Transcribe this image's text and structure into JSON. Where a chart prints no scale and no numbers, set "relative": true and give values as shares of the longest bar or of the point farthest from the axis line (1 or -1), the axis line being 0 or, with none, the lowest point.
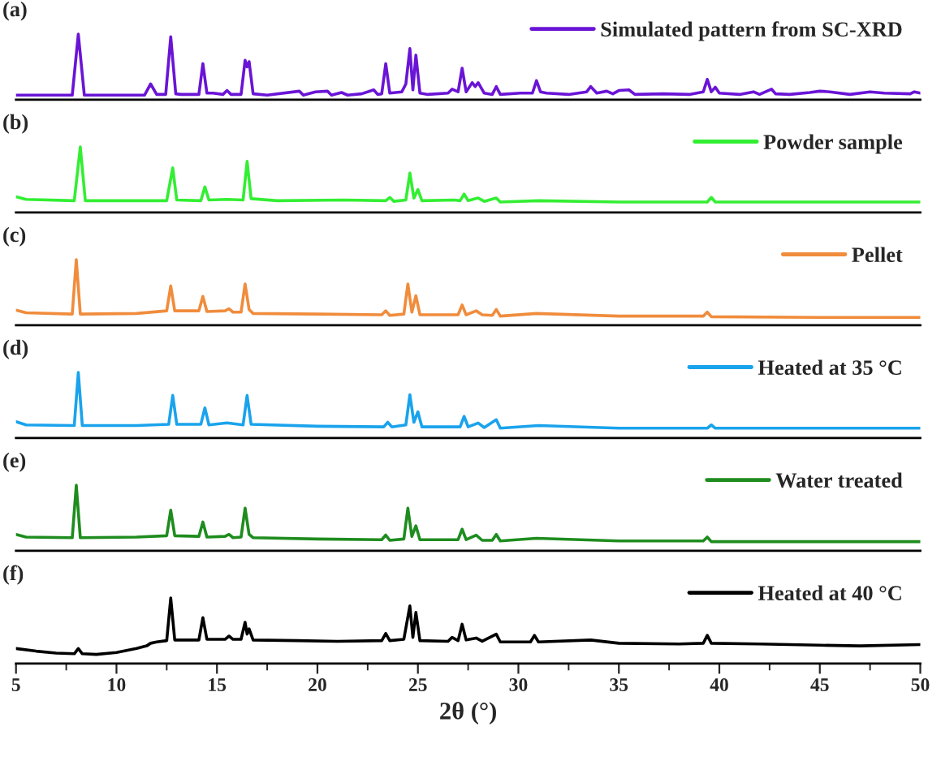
{
  "chart_data": [
    {
      "type": "line",
      "title": "(a)",
      "relative": true,
      "xlim": [
        5,
        50
      ],
      "tick_labels": false,
      "legend": "top right",
      "series": [
        {
          "name": "Simulated pattern from SC-XRD",
          "color": "#6a14d6",
          "x": [
            5,
            7.8,
            8.1,
            8.4,
            11.4,
            11.7,
            12.0,
            12.45,
            12.7,
            12.95,
            13.2,
            14.1,
            14.3,
            14.5,
            14.8,
            15.3,
            15.5,
            15.7,
            16.2,
            16.4,
            16.5,
            16.6,
            16.8,
            17.5,
            19.1,
            19.3,
            19.9,
            20.5,
            20.7,
            21.2,
            21.5,
            22.2,
            22.8,
            23.0,
            23.2,
            23.4,
            23.6,
            24.2,
            24.4,
            24.6,
            24.75,
            24.9,
            25.1,
            25.5,
            26.5,
            26.7,
            27.0,
            27.2,
            27.4,
            27.7,
            27.85,
            28.0,
            28.3,
            28.7,
            28.9,
            29.1,
            30.1,
            30.7,
            30.9,
            31.1,
            31.4,
            32.5,
            33.4,
            33.6,
            33.9,
            34.4,
            34.7,
            35.0,
            35.5,
            35.8,
            37.2,
            38.5,
            39.2,
            39.4,
            39.6,
            39.8,
            40.0,
            41.0,
            41.7,
            42.0,
            42.6,
            42.8,
            43.5,
            44.5,
            45.0,
            45.5,
            46.5,
            47.5,
            48.2,
            49.5,
            49.7,
            50
          ],
          "values": [
            0.07,
            0.07,
            1.0,
            0.07,
            0.07,
            0.24,
            0.08,
            0.08,
            0.96,
            0.09,
            0.08,
            0.08,
            0.55,
            0.1,
            0.1,
            0.08,
            0.14,
            0.08,
            0.08,
            0.6,
            0.5,
            0.58,
            0.09,
            0.07,
            0.13,
            0.07,
            0.12,
            0.13,
            0.07,
            0.11,
            0.07,
            0.09,
            0.15,
            0.08,
            0.09,
            0.55,
            0.1,
            0.12,
            0.24,
            0.78,
            0.15,
            0.68,
            0.1,
            0.08,
            0.1,
            0.16,
            0.12,
            0.48,
            0.12,
            0.26,
            0.2,
            0.26,
            0.1,
            0.08,
            0.2,
            0.08,
            0.1,
            0.1,
            0.29,
            0.12,
            0.1,
            0.08,
            0.12,
            0.2,
            0.1,
            0.13,
            0.09,
            0.14,
            0.15,
            0.08,
            0.09,
            0.08,
            0.12,
            0.31,
            0.12,
            0.19,
            0.1,
            0.08,
            0.12,
            0.08,
            0.16,
            0.09,
            0.08,
            0.11,
            0.13,
            0.12,
            0.08,
            0.12,
            0.1,
            0.09,
            0.12,
            0.1
          ]
        }
      ]
    },
    {
      "type": "line",
      "title": "(b)",
      "relative": true,
      "xlim": [
        5,
        50
      ],
      "tick_labels": false,
      "legend": "top right",
      "series": [
        {
          "name": "Powder sample",
          "color": "#33ee33",
          "x": [
            5,
            5.5,
            7.9,
            8.2,
            8.45,
            12.5,
            12.8,
            13.0,
            14.2,
            14.4,
            14.6,
            15.5,
            16.3,
            16.5,
            16.7,
            18,
            21.3,
            23.4,
            23.6,
            23.8,
            24.4,
            24.6,
            24.8,
            25.0,
            25.2,
            26.8,
            27.1,
            27.3,
            27.5,
            28.0,
            28.3,
            28.9,
            29.1,
            31.0,
            35,
            39.4,
            39.6,
            39.8,
            45,
            50
          ],
          "values": [
            0.24,
            0.2,
            0.18,
            1.0,
            0.18,
            0.18,
            0.68,
            0.19,
            0.18,
            0.39,
            0.19,
            0.2,
            0.19,
            0.78,
            0.21,
            0.18,
            0.19,
            0.18,
            0.23,
            0.17,
            0.19,
            0.6,
            0.22,
            0.35,
            0.18,
            0.19,
            0.18,
            0.28,
            0.18,
            0.22,
            0.17,
            0.22,
            0.16,
            0.18,
            0.16,
            0.16,
            0.23,
            0.16,
            0.16,
            0.16
          ]
        }
      ]
    },
    {
      "type": "line",
      "title": "(c)",
      "relative": true,
      "xlim": [
        5,
        50
      ],
      "tick_labels": false,
      "legend": "top right",
      "series": [
        {
          "name": "Pellet",
          "color": "#f08c3c",
          "x": [
            5,
            5.5,
            7.8,
            8.0,
            8.2,
            11,
            12.5,
            12.7,
            12.9,
            14.1,
            14.3,
            14.5,
            15.4,
            15.6,
            15.8,
            16.2,
            16.4,
            16.6,
            16.8,
            20,
            23.2,
            23.4,
            23.6,
            24.3,
            24.5,
            24.7,
            24.9,
            25.1,
            27.0,
            27.2,
            27.4,
            27.9,
            28.2,
            28.7,
            28.9,
            29.1,
            30.9,
            35,
            39.2,
            39.4,
            39.6,
            45,
            50
          ],
          "values": [
            0.23,
            0.19,
            0.17,
            1.0,
            0.17,
            0.18,
            0.22,
            0.6,
            0.22,
            0.22,
            0.44,
            0.21,
            0.22,
            0.25,
            0.2,
            0.2,
            0.63,
            0.24,
            0.18,
            0.17,
            0.16,
            0.22,
            0.15,
            0.17,
            0.63,
            0.2,
            0.45,
            0.16,
            0.16,
            0.31,
            0.16,
            0.22,
            0.16,
            0.15,
            0.24,
            0.14,
            0.18,
            0.14,
            0.14,
            0.2,
            0.13,
            0.12,
            0.12
          ]
        }
      ]
    },
    {
      "type": "line",
      "title": "(d)",
      "relative": true,
      "xlim": [
        5,
        50
      ],
      "tick_labels": false,
      "legend": "top right",
      "series": [
        {
          "name": "Heated at 35 °C",
          "color": "#1aa3ec",
          "x": [
            5,
            5.5,
            7.9,
            8.1,
            8.3,
            11,
            12.6,
            12.8,
            13.0,
            14.2,
            14.4,
            14.6,
            15.5,
            16.3,
            16.5,
            16.7,
            20,
            23.3,
            23.5,
            23.7,
            24.4,
            24.6,
            24.8,
            25.0,
            25.2,
            27.1,
            27.3,
            27.5,
            28.0,
            28.3,
            28.9,
            29.1,
            31.0,
            35,
            39.4,
            39.6,
            39.8,
            45,
            50
          ],
          "values": [
            0.25,
            0.2,
            0.19,
            1.0,
            0.19,
            0.19,
            0.21,
            0.65,
            0.21,
            0.21,
            0.46,
            0.2,
            0.23,
            0.2,
            0.65,
            0.21,
            0.18,
            0.17,
            0.24,
            0.17,
            0.2,
            0.66,
            0.24,
            0.4,
            0.17,
            0.17,
            0.33,
            0.17,
            0.23,
            0.16,
            0.28,
            0.15,
            0.19,
            0.15,
            0.15,
            0.2,
            0.15,
            0.15,
            0.15
          ]
        }
      ]
    },
    {
      "type": "line",
      "title": "(e)",
      "relative": true,
      "xlim": [
        5,
        50
      ],
      "tick_labels": false,
      "legend": "top right",
      "series": [
        {
          "name": "Water treated",
          "color": "#1e8c1e",
          "x": [
            5,
            5.5,
            7.8,
            8.0,
            8.2,
            11,
            12.5,
            12.7,
            12.9,
            14.1,
            14.3,
            14.5,
            15.4,
            15.6,
            15.8,
            16.2,
            16.4,
            16.6,
            16.8,
            20,
            23.2,
            23.4,
            23.6,
            24.3,
            24.5,
            24.7,
            24.9,
            25.1,
            27.0,
            27.2,
            27.4,
            27.9,
            28.2,
            28.7,
            28.9,
            29.1,
            30.9,
            35,
            39.2,
            39.4,
            39.6,
            45,
            50
          ],
          "values": [
            0.25,
            0.21,
            0.2,
            1.0,
            0.2,
            0.21,
            0.23,
            0.62,
            0.23,
            0.22,
            0.44,
            0.21,
            0.22,
            0.25,
            0.2,
            0.21,
            0.65,
            0.25,
            0.2,
            0.18,
            0.17,
            0.24,
            0.16,
            0.18,
            0.65,
            0.22,
            0.38,
            0.17,
            0.17,
            0.33,
            0.17,
            0.24,
            0.16,
            0.16,
            0.25,
            0.15,
            0.19,
            0.15,
            0.15,
            0.21,
            0.14,
            0.14,
            0.14
          ]
        }
      ]
    },
    {
      "type": "line",
      "title": "(f)",
      "relative": true,
      "xlim": [
        5,
        50
      ],
      "tick_labels": "x",
      "legend": "top right",
      "xlabel": "2θ (°)",
      "xticks": [
        5,
        {
          "value": 7.5,
          "label": null
        },
        10,
        {
          "value": 12.5,
          "label": null
        },
        15,
        {
          "value": 17.5,
          "label": null
        },
        20,
        {
          "value": 22.5,
          "label": null
        },
        25,
        {
          "value": 27.5,
          "label": null
        },
        30,
        {
          "value": 32.5,
          "label": null
        },
        35,
        {
          "value": 37.5,
          "label": null
        },
        40,
        {
          "value": 42.5,
          "label": null
        },
        45,
        {
          "value": 47.5,
          "label": null
        },
        50
      ],
      "series": [
        {
          "name": "Heated at 40 °C",
          "color": "#000000",
          "x": [
            5,
            6,
            7,
            7.9,
            8.1,
            8.3,
            9,
            10,
            11,
            11.5,
            11.7,
            12,
            12.5,
            12.7,
            12.9,
            14.1,
            14.3,
            14.5,
            15.4,
            15.6,
            15.8,
            16.2,
            16.4,
            16.5,
            16.6,
            16.8,
            19,
            21,
            23.2,
            23.4,
            23.6,
            24.3,
            24.6,
            24.75,
            24.9,
            25.1,
            26.5,
            26.7,
            27.0,
            27.2,
            27.4,
            27.9,
            28.2,
            28.9,
            29.1,
            30.6,
            30.8,
            31.0,
            33.6,
            35,
            38,
            39.2,
            39.4,
            39.6,
            42,
            45,
            47,
            50
          ],
          "values": [
            0.23,
            0.19,
            0.16,
            0.15,
            0.23,
            0.15,
            0.14,
            0.17,
            0.23,
            0.27,
            0.31,
            0.33,
            0.35,
            1.0,
            0.36,
            0.36,
            0.7,
            0.37,
            0.37,
            0.42,
            0.37,
            0.37,
            0.63,
            0.45,
            0.53,
            0.36,
            0.35,
            0.34,
            0.35,
            0.46,
            0.35,
            0.37,
            0.88,
            0.4,
            0.78,
            0.35,
            0.34,
            0.4,
            0.35,
            0.6,
            0.36,
            0.39,
            0.34,
            0.45,
            0.33,
            0.33,
            0.43,
            0.33,
            0.36,
            0.31,
            0.3,
            0.31,
            0.43,
            0.31,
            0.3,
            0.28,
            0.27,
            0.29
          ]
        }
      ]
    }
  ]
}
